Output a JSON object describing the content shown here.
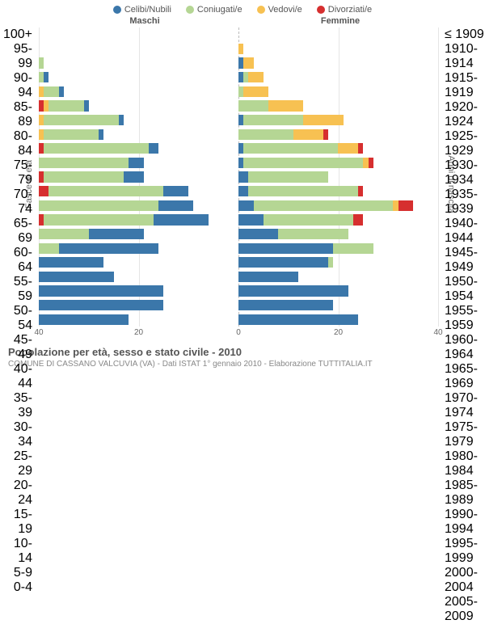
{
  "colors": {
    "celibi": "#3b77aa",
    "coniugati": "#b5d694",
    "vedovi": "#f7c152",
    "divorziati": "#d62f2f",
    "grid": "#e5e5e5",
    "center": "#bbbbbb"
  },
  "legend": [
    {
      "key": "celibi",
      "label": "Celibi/Nubili"
    },
    {
      "key": "coniugati",
      "label": "Coniugati/e"
    },
    {
      "key": "vedovi",
      "label": "Vedovi/e"
    },
    {
      "key": "divorziati",
      "label": "Divorziati/e"
    }
  ],
  "headers": {
    "left": "Maschi",
    "right": "Femmine"
  },
  "axisLabels": {
    "left": "Fasce di età",
    "right": "Anni di nascita"
  },
  "xmax": 40,
  "xticks": [
    40,
    20,
    0,
    20,
    40
  ],
  "ageLabels": [
    "100+",
    "95-99",
    "90-94",
    "85-89",
    "80-84",
    "75-79",
    "70-74",
    "65-69",
    "60-64",
    "55-59",
    "50-54",
    "45-49",
    "40-44",
    "35-39",
    "30-34",
    "25-29",
    "20-24",
    "15-19",
    "10-14",
    "5-9",
    "0-4"
  ],
  "birthLabels": [
    "≤ 1909",
    "1910-1914",
    "1915-1919",
    "1920-1924",
    "1925-1929",
    "1930-1934",
    "1935-1939",
    "1940-1944",
    "1945-1949",
    "1950-1954",
    "1955-1959",
    "1960-1964",
    "1965-1969",
    "1970-1974",
    "1975-1979",
    "1980-1984",
    "1985-1989",
    "1990-1994",
    "1995-1999",
    "2000-2004",
    "2005-2009"
  ],
  "rows": [
    {
      "m": {
        "ce": 0,
        "co": 0,
        "ve": 0,
        "di": 0
      },
      "f": {
        "ce": 0,
        "co": 0,
        "ve": 0,
        "di": 0
      }
    },
    {
      "m": {
        "ce": 0,
        "co": 0,
        "ve": 0,
        "di": 0
      },
      "f": {
        "ce": 0,
        "co": 0,
        "ve": 1,
        "di": 0
      }
    },
    {
      "m": {
        "ce": 0,
        "co": 1,
        "ve": 0,
        "di": 0
      },
      "f": {
        "ce": 1,
        "co": 0,
        "ve": 2,
        "di": 0
      }
    },
    {
      "m": {
        "ce": 1,
        "co": 1,
        "ve": 0,
        "di": 0
      },
      "f": {
        "ce": 1,
        "co": 1,
        "ve": 3,
        "di": 0
      }
    },
    {
      "m": {
        "ce": 1,
        "co": 3,
        "ve": 1,
        "di": 0
      },
      "f": {
        "ce": 0,
        "co": 1,
        "ve": 5,
        "di": 0
      }
    },
    {
      "m": {
        "ce": 1,
        "co": 7,
        "ve": 1,
        "di": 1
      },
      "f": {
        "ce": 0,
        "co": 6,
        "ve": 7,
        "di": 0
      }
    },
    {
      "m": {
        "ce": 1,
        "co": 15,
        "ve": 1,
        "di": 0
      },
      "f": {
        "ce": 1,
        "co": 12,
        "ve": 8,
        "di": 0
      }
    },
    {
      "m": {
        "ce": 1,
        "co": 11,
        "ve": 1,
        "di": 0
      },
      "f": {
        "ce": 0,
        "co": 11,
        "ve": 6,
        "di": 1
      }
    },
    {
      "m": {
        "ce": 2,
        "co": 21,
        "ve": 0,
        "di": 1
      },
      "f": {
        "ce": 1,
        "co": 19,
        "ve": 4,
        "di": 1
      }
    },
    {
      "m": {
        "ce": 3,
        "co": 18,
        "ve": 0,
        "di": 0
      },
      "f": {
        "ce": 1,
        "co": 24,
        "ve": 1,
        "di": 1
      }
    },
    {
      "m": {
        "ce": 4,
        "co": 16,
        "ve": 0,
        "di": 1
      },
      "f": {
        "ce": 2,
        "co": 16,
        "ve": 0,
        "di": 0
      }
    },
    {
      "m": {
        "ce": 5,
        "co": 23,
        "ve": 0,
        "di": 2
      },
      "f": {
        "ce": 2,
        "co": 22,
        "ve": 0,
        "di": 1
      }
    },
    {
      "m": {
        "ce": 7,
        "co": 24,
        "ve": 0,
        "di": 0
      },
      "f": {
        "ce": 3,
        "co": 28,
        "ve": 1,
        "di": 3
      }
    },
    {
      "m": {
        "ce": 11,
        "co": 22,
        "ve": 0,
        "di": 1
      },
      "f": {
        "ce": 5,
        "co": 18,
        "ve": 0,
        "di": 2
      }
    },
    {
      "m": {
        "ce": 11,
        "co": 10,
        "ve": 0,
        "di": 0
      },
      "f": {
        "ce": 8,
        "co": 14,
        "ve": 0,
        "di": 0
      }
    },
    {
      "m": {
        "ce": 20,
        "co": 4,
        "ve": 0,
        "di": 0
      },
      "f": {
        "ce": 19,
        "co": 8,
        "ve": 0,
        "di": 0
      }
    },
    {
      "m": {
        "ce": 13,
        "co": 0,
        "ve": 0,
        "di": 0
      },
      "f": {
        "ce": 18,
        "co": 1,
        "ve": 0,
        "di": 0
      }
    },
    {
      "m": {
        "ce": 15,
        "co": 0,
        "ve": 0,
        "di": 0
      },
      "f": {
        "ce": 12,
        "co": 0,
        "ve": 0,
        "di": 0
      }
    },
    {
      "m": {
        "ce": 25,
        "co": 0,
        "ve": 0,
        "di": 0
      },
      "f": {
        "ce": 22,
        "co": 0,
        "ve": 0,
        "di": 0
      }
    },
    {
      "m": {
        "ce": 25,
        "co": 0,
        "ve": 0,
        "di": 0
      },
      "f": {
        "ce": 19,
        "co": 0,
        "ve": 0,
        "di": 0
      }
    },
    {
      "m": {
        "ce": 18,
        "co": 0,
        "ve": 0,
        "di": 0
      },
      "f": {
        "ce": 24,
        "co": 0,
        "ve": 0,
        "di": 0
      }
    }
  ],
  "footer": {
    "title": "Popolazione per età, sesso e stato civile - 2010",
    "sub": "COMUNE DI CASSANO VALCUVIA (VA) - Dati ISTAT 1° gennaio 2010 - Elaborazione TUTTITALIA.IT"
  }
}
